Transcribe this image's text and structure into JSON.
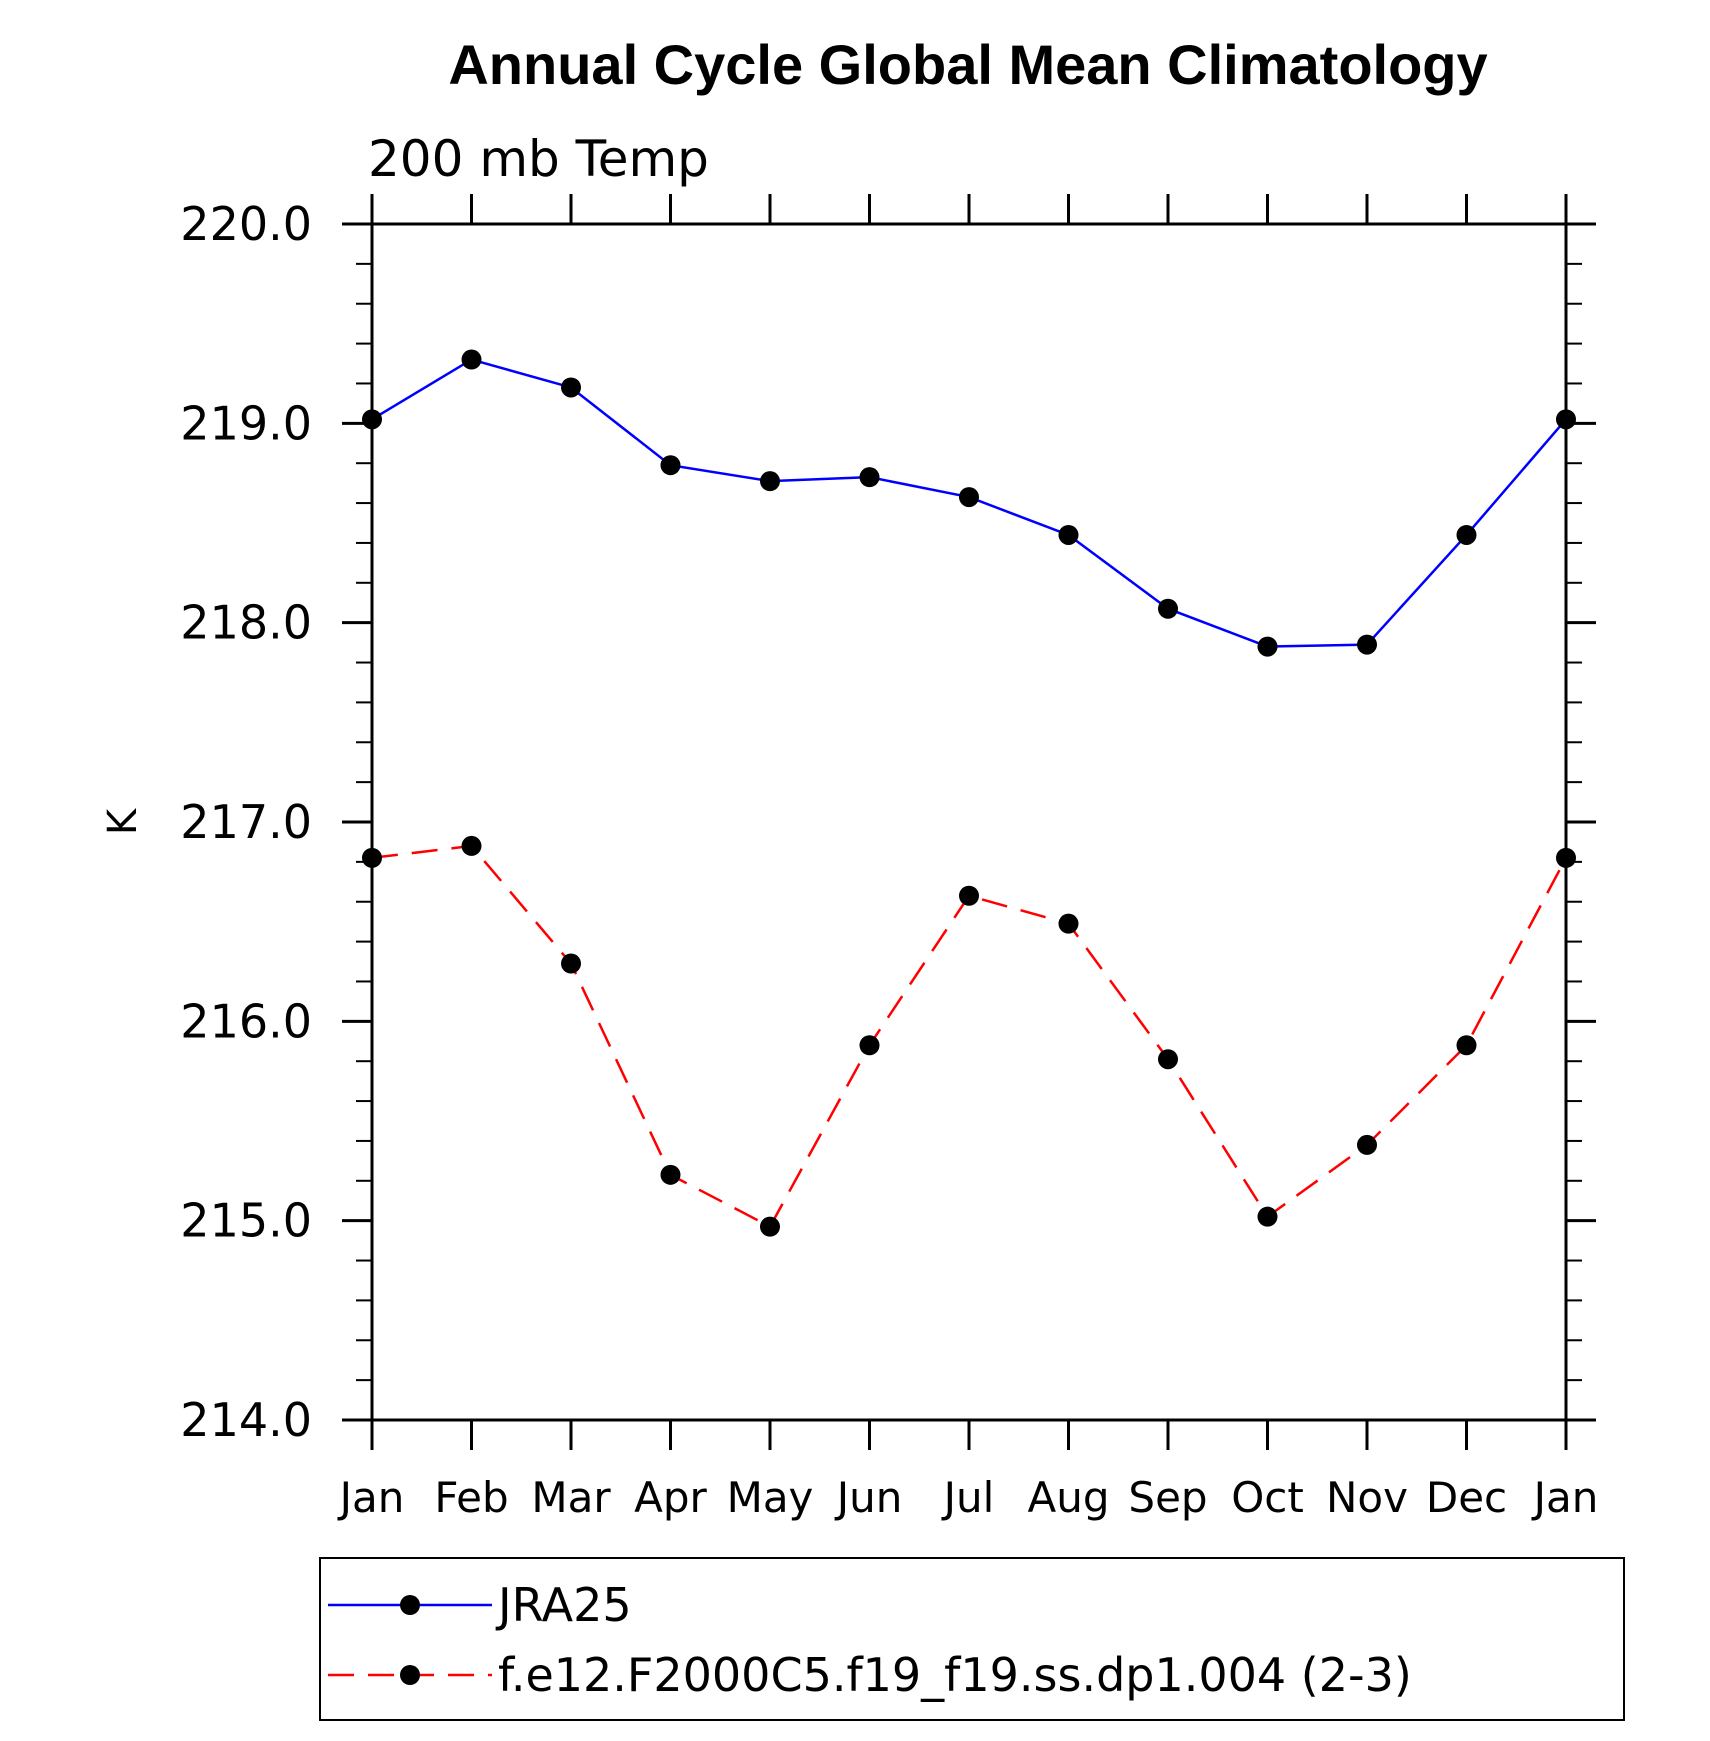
{
  "chart_data": {
    "type": "line",
    "title": "Annual Cycle Global Mean Climatology",
    "subtitle": "200 mb Temp",
    "ylabel": "K",
    "xlabel": "",
    "categories": [
      "Jan",
      "Feb",
      "Mar",
      "Apr",
      "May",
      "Jun",
      "Jul",
      "Aug",
      "Sep",
      "Oct",
      "Nov",
      "Dec",
      "Jan"
    ],
    "ylim": [
      214.0,
      220.0
    ],
    "yticks": [
      "214.0",
      "215.0",
      "216.0",
      "217.0",
      "218.0",
      "219.0",
      "220.0"
    ],
    "grid": false,
    "legend_position": "bottom",
    "series": [
      {
        "name": "JRA25",
        "color": "#0000ff",
        "dash": "solid",
        "marker": "circle",
        "values": [
          219.02,
          219.32,
          219.18,
          218.79,
          218.71,
          218.73,
          218.63,
          218.44,
          218.07,
          217.88,
          217.89,
          218.44,
          219.02
        ]
      },
      {
        "name": "f.e12.F2000C5.f19_f19.ss.dp1.004 (2-3)",
        "color": "#ff0000",
        "dash": "dashed",
        "marker": "circle",
        "values": [
          216.82,
          216.88,
          216.29,
          215.23,
          214.97,
          215.88,
          216.63,
          216.49,
          215.81,
          215.02,
          215.38,
          215.88,
          216.82
        ]
      }
    ]
  }
}
